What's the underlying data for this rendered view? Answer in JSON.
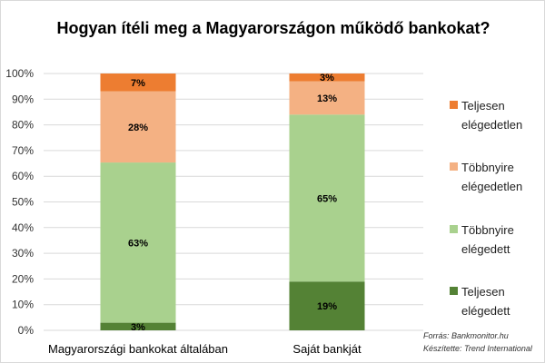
{
  "chart_data": {
    "type": "bar",
    "stacked": true,
    "title": "Hogyan ítéli meg a Magyarországon működő bankokat?",
    "xlabel": "",
    "ylabel": "",
    "ylim": [
      0,
      100
    ],
    "yticks": [
      "0%",
      "10%",
      "20%",
      "30%",
      "40%",
      "50%",
      "60%",
      "70%",
      "80%",
      "90%",
      "100%"
    ],
    "grid": true,
    "legend_position": "right",
    "categories": [
      "Magyarországi bankokat általában",
      "Saját bankját"
    ],
    "series": [
      {
        "name": "Teljesen elégedett",
        "color": "#548235",
        "values": [
          3,
          19
        ],
        "labels": [
          "3%",
          "19%"
        ]
      },
      {
        "name": "Többnyire elégedett",
        "color": "#a9d18e",
        "values": [
          63,
          65
        ],
        "labels": [
          "63%",
          "65%"
        ]
      },
      {
        "name": "Többnyire elégedetlen",
        "color": "#f4b183",
        "values": [
          28,
          13
        ],
        "labels": [
          "28%",
          "13%"
        ]
      },
      {
        "name": "Teljesen elégedetlen",
        "color": "#ed7d31",
        "values": [
          7,
          3
        ],
        "labels": [
          "7%",
          "3%"
        ]
      }
    ],
    "legend_lines": [
      [
        "Teljesen",
        "elégedetlen"
      ],
      [
        "Többnyire",
        "elégedetlen"
      ],
      [
        "Többnyire",
        "elégedett"
      ],
      [
        "Teljesen",
        "elégedett"
      ]
    ],
    "annotations": [
      "Forrás: Bankmonitor.hu",
      "Készítette: Trend International"
    ]
  }
}
